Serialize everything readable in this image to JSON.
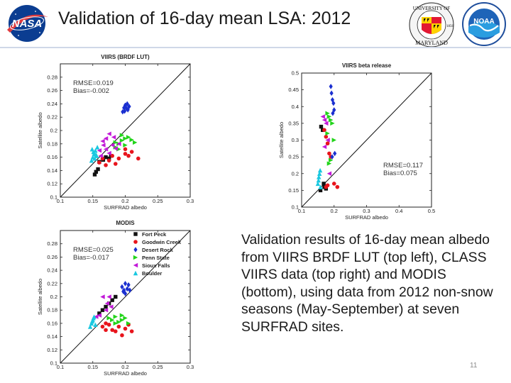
{
  "title": "Validation of 16-day mean LSA: 2012",
  "logos": {
    "nasa": {
      "text": "NASA"
    },
    "umd": {
      "text_top": "UNIVERSITY OF",
      "text_bottom": "MARYLAND",
      "year": "1856"
    },
    "noaa": {
      "text": "NOAA"
    }
  },
  "caption": "Validation results of 16-day mean albedo from VIIRS BRDF LUT (top left), CLASS VIIRS data (top right) and MODIS (bottom), using data from 2012 non-snow seasons (May-September) at seven SURFRAD sites.",
  "page_number": "11",
  "colors": {
    "Fort Peck": "#111111",
    "Goodwin Creek": "#e8141c",
    "Desert Rock": "#1a2fd0",
    "Penn State": "#22d41a",
    "Sioux Falls": "#c21ad8",
    "Boulder": "#19c8e0"
  },
  "chart_data": [
    {
      "type": "scatter",
      "title": "VIIRS (BRDF LUT)",
      "xlabel": "SURFRAD albedo",
      "ylabel": "Satellite albedo",
      "xlim": [
        0.1,
        0.3
      ],
      "ylim": [
        0.1,
        0.3
      ],
      "xticks": [
        "0.1",
        "0.15",
        "0.2",
        "0.25",
        "0.3"
      ],
      "yticks": [
        "0.1",
        "0.12",
        "0.14",
        "0.16",
        "0.18",
        "0.2",
        "0.22",
        "0.24",
        "0.26",
        "0.28"
      ],
      "stats": [
        "RMSE=0.019",
        "Bias=-0.002"
      ],
      "stats_position": "top-left",
      "one_to_one_line": true,
      "series": [
        {
          "name": "Fort Peck",
          "marker": "square",
          "x": [
            0.153,
            0.155,
            0.158,
            0.16,
            0.166,
            0.17,
            0.175,
            0.178
          ],
          "y": [
            0.134,
            0.138,
            0.142,
            0.153,
            0.156,
            0.16,
            0.158,
            0.162
          ]
        },
        {
          "name": "Goodwin Creek",
          "marker": "circle",
          "x": [
            0.16,
            0.165,
            0.17,
            0.175,
            0.18,
            0.185,
            0.19,
            0.2,
            0.2,
            0.205,
            0.21,
            0.22
          ],
          "y": [
            0.152,
            0.158,
            0.148,
            0.155,
            0.162,
            0.15,
            0.158,
            0.172,
            0.165,
            0.162,
            0.168,
            0.158
          ]
        },
        {
          "name": "Desert Rock",
          "marker": "diamond",
          "x": [
            0.196,
            0.198,
            0.2,
            0.202,
            0.204,
            0.206,
            0.199,
            0.203
          ],
          "y": [
            0.228,
            0.234,
            0.238,
            0.233,
            0.231,
            0.236,
            0.229,
            0.24
          ]
        },
        {
          "name": "Penn State",
          "marker": "triangle-right",
          "x": [
            0.185,
            0.19,
            0.195,
            0.2,
            0.205,
            0.21,
            0.2,
            0.19,
            0.215,
            0.195,
            0.185
          ],
          "y": [
            0.175,
            0.18,
            0.185,
            0.188,
            0.19,
            0.186,
            0.178,
            0.172,
            0.182,
            0.193,
            0.182
          ]
        },
        {
          "name": "Sioux Falls",
          "marker": "triangle-left",
          "x": [
            0.16,
            0.162,
            0.166,
            0.17,
            0.175,
            0.165,
            0.175,
            0.18,
            0.182,
            0.185,
            0.19,
            0.17
          ],
          "y": [
            0.17,
            0.162,
            0.178,
            0.172,
            0.166,
            0.184,
            0.195,
            0.178,
            0.19,
            0.173,
            0.18,
            0.188
          ]
        },
        {
          "name": "Boulder",
          "marker": "triangle-up",
          "x": [
            0.148,
            0.15,
            0.152,
            0.154,
            0.156,
            0.149,
            0.153,
            0.151,
            0.157,
            0.155
          ],
          "y": [
            0.155,
            0.16,
            0.165,
            0.17,
            0.162,
            0.172,
            0.158,
            0.168,
            0.175,
            0.164
          ]
        }
      ]
    },
    {
      "type": "scatter",
      "title": "VIIRS beta release",
      "xlabel": "SURFRAD albedo",
      "ylabel": "Satellite albedo",
      "xlim": [
        0.1,
        0.5
      ],
      "ylim": [
        0.1,
        0.5
      ],
      "xticks": [
        "0.1",
        "0.2",
        "0.3",
        "0.4",
        "0.5"
      ],
      "yticks": [
        "0.1",
        "0.15",
        "0.2",
        "0.25",
        "0.3",
        "0.35",
        "0.4",
        "0.45",
        "0.5"
      ],
      "stats": [
        "RMSE=0.117",
        "Bias=0.075"
      ],
      "stats_position": "lower-right",
      "one_to_one_line": true,
      "series": [
        {
          "name": "Fort Peck",
          "marker": "square",
          "x": [
            0.16,
            0.165,
            0.17,
            0.175,
            0.158,
            0.168
          ],
          "y": [
            0.34,
            0.33,
            0.16,
            0.155,
            0.15,
            0.17
          ]
        },
        {
          "name": "Goodwin Creek",
          "marker": "circle",
          "x": [
            0.17,
            0.175,
            0.18,
            0.185,
            0.19,
            0.2,
            0.21,
            0.18,
            0.175
          ],
          "y": [
            0.33,
            0.31,
            0.29,
            0.26,
            0.25,
            0.17,
            0.16,
            0.165,
            0.16
          ]
        },
        {
          "name": "Desert Rock",
          "marker": "diamond",
          "x": [
            0.19,
            0.192,
            0.195,
            0.198,
            0.2,
            0.196,
            0.202,
            0.194
          ],
          "y": [
            0.46,
            0.44,
            0.42,
            0.41,
            0.39,
            0.38,
            0.26,
            0.25
          ]
        },
        {
          "name": "Penn State",
          "marker": "triangle-right",
          "x": [
            0.18,
            0.185,
            0.19,
            0.195,
            0.2,
            0.19,
            0.185,
            0.18
          ],
          "y": [
            0.38,
            0.37,
            0.36,
            0.35,
            0.3,
            0.24,
            0.23,
            0.32
          ]
        },
        {
          "name": "Sioux Falls",
          "marker": "triangle-left",
          "x": [
            0.165,
            0.17,
            0.175,
            0.18,
            0.185,
            0.17
          ],
          "y": [
            0.37,
            0.36,
            0.35,
            0.3,
            0.2,
            0.28
          ]
        },
        {
          "name": "Boulder",
          "marker": "triangle-up",
          "x": [
            0.15,
            0.152,
            0.155,
            0.158,
            0.153,
            0.157
          ],
          "y": [
            0.17,
            0.18,
            0.2,
            0.16,
            0.19,
            0.21
          ]
        }
      ]
    },
    {
      "type": "scatter",
      "title": "MODIS",
      "xlabel": "SURFRAD albedo",
      "ylabel": "Satellite albedo",
      "xlim": [
        0.1,
        0.3
      ],
      "ylim": [
        0.1,
        0.3
      ],
      "xticks": [
        "0.1",
        "0.15",
        "0.2",
        "0.25",
        "0.3"
      ],
      "yticks": [
        "0.1",
        "0.12",
        "0.14",
        "0.16",
        "0.18",
        "0.2",
        "0.22",
        "0.24",
        "0.26",
        "0.28"
      ],
      "stats": [
        "RMSE=0.025",
        "Bias=-0.017"
      ],
      "stats_position": "top-left",
      "legend_position": "top-right",
      "one_to_one_line": true,
      "series": [
        {
          "name": "Fort Peck",
          "marker": "square",
          "x": [
            0.16,
            0.165,
            0.17,
            0.175,
            0.18,
            0.185
          ],
          "y": [
            0.175,
            0.18,
            0.185,
            0.19,
            0.195,
            0.2
          ]
        },
        {
          "name": "Goodwin Creek",
          "marker": "circle",
          "x": [
            0.165,
            0.17,
            0.175,
            0.18,
            0.185,
            0.19,
            0.195,
            0.2,
            0.21,
            0.205,
            0.17
          ],
          "y": [
            0.155,
            0.16,
            0.158,
            0.15,
            0.148,
            0.155,
            0.142,
            0.152,
            0.148,
            0.158,
            0.15
          ]
        },
        {
          "name": "Desert Rock",
          "marker": "diamond",
          "x": [
            0.195,
            0.198,
            0.2,
            0.203,
            0.205,
            0.2,
            0.197,
            0.207
          ],
          "y": [
            0.215,
            0.21,
            0.22,
            0.212,
            0.218,
            0.205,
            0.208,
            0.21
          ]
        },
        {
          "name": "Penn State",
          "marker": "triangle-right",
          "x": [
            0.175,
            0.18,
            0.185,
            0.19,
            0.195,
            0.2,
            0.205,
            0.185,
            0.195
          ],
          "y": [
            0.168,
            0.165,
            0.17,
            0.162,
            0.165,
            0.168,
            0.16,
            0.16,
            0.172
          ]
        },
        {
          "name": "Sioux Falls",
          "marker": "triangle-left",
          "x": [
            0.155,
            0.16,
            0.165,
            0.17,
            0.172,
            0.175,
            0.178
          ],
          "y": [
            0.17,
            0.172,
            0.2,
            0.18,
            0.19,
            0.2,
            0.185
          ]
        },
        {
          "name": "Boulder",
          "marker": "triangle-up",
          "x": [
            0.146,
            0.148,
            0.15,
            0.152,
            0.154,
            0.149,
            0.151
          ],
          "y": [
            0.155,
            0.16,
            0.165,
            0.17,
            0.158,
            0.163,
            0.168
          ]
        }
      ]
    }
  ]
}
